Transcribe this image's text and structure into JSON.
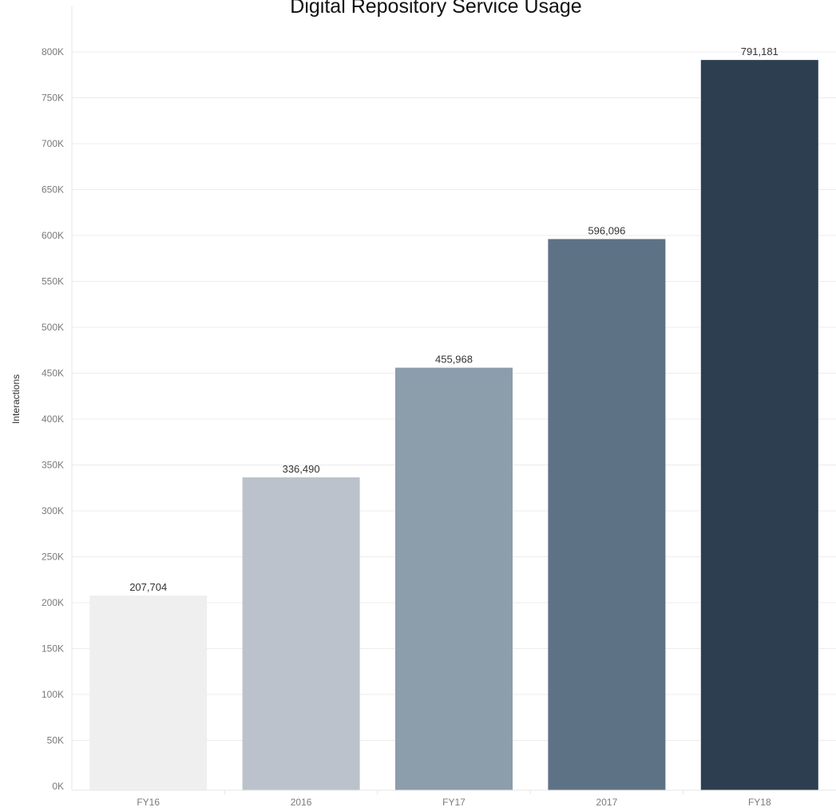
{
  "chart_data": {
    "type": "bar",
    "title": "Digital Repository Service Usage",
    "xlabel": "",
    "ylabel": "Interactions",
    "categories": [
      "FY16",
      "2016",
      "FY17",
      "2017",
      "FY18"
    ],
    "values": [
      207704,
      336490,
      455968,
      596096,
      791181
    ],
    "value_labels": [
      "207,704",
      "336,490",
      "455,968",
      "596,096",
      "791,181"
    ],
    "bar_colors": [
      "#efefef",
      "#bbc2cc",
      "#8c9dac",
      "#5e7286",
      "#2e3e51"
    ],
    "ylim": [
      0,
      800000
    ],
    "y_ticks": [
      0,
      50000,
      100000,
      150000,
      200000,
      250000,
      300000,
      350000,
      400000,
      450000,
      500000,
      550000,
      600000,
      650000,
      700000,
      750000,
      800000
    ],
    "y_tick_labels": [
      "0K",
      "50K",
      "100K",
      "150K",
      "200K",
      "250K",
      "300K",
      "350K",
      "400K",
      "450K",
      "500K",
      "550K",
      "600K",
      "650K",
      "700K",
      "750K",
      "800K"
    ],
    "grid": true,
    "legend": "none"
  }
}
